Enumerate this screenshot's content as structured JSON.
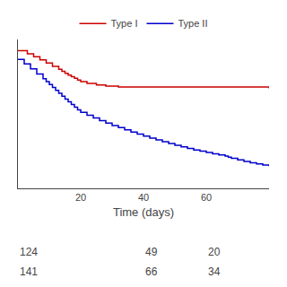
{
  "chart_data": {
    "type": "step",
    "xlabel": "Time (days)",
    "series": [
      {
        "name": "Type I",
        "color": "#cc0000",
        "x": [
          0,
          3,
          5,
          7,
          9,
          11,
          13,
          14,
          15,
          16,
          17,
          18,
          19,
          20,
          22,
          25,
          28,
          32,
          80
        ],
        "values": [
          0.97,
          0.955,
          0.942,
          0.928,
          0.914,
          0.899,
          0.886,
          0.877,
          0.868,
          0.86,
          0.853,
          0.845,
          0.837,
          0.83,
          0.822,
          0.815,
          0.81,
          0.806,
          0.8
        ]
      },
      {
        "name": "Type II",
        "color": "#0000cc",
        "x": [
          0,
          2,
          4,
          6,
          8,
          9,
          10,
          11,
          12,
          13,
          14,
          15,
          16,
          17,
          18,
          19,
          20,
          22,
          24,
          26,
          28,
          30,
          32,
          34,
          36,
          38,
          40,
          42,
          44,
          46,
          48,
          50,
          52,
          54,
          56,
          58,
          60,
          62,
          64,
          66,
          67,
          68,
          70,
          72,
          74,
          76,
          78,
          80
        ],
        "values": [
          0.93,
          0.91,
          0.888,
          0.865,
          0.843,
          0.83,
          0.817,
          0.804,
          0.791,
          0.778,
          0.765,
          0.752,
          0.739,
          0.727,
          0.715,
          0.703,
          0.692,
          0.679,
          0.667,
          0.655,
          0.644,
          0.633,
          0.623,
          0.613,
          0.603,
          0.594,
          0.585,
          0.576,
          0.568,
          0.56,
          0.552,
          0.544,
          0.537,
          0.53,
          0.523,
          0.517,
          0.511,
          0.505,
          0.5,
          0.495,
          0.49,
          0.485,
          0.478,
          0.471,
          0.465,
          0.46,
          0.455,
          0.45
        ]
      }
    ],
    "xlim": [
      0,
      80
    ],
    "xticks": [
      20,
      40,
      60
    ],
    "ylim": [
      0.35,
      1.02
    ],
    "yticks": [],
    "tick_labels": "x",
    "grid": false,
    "legend": "top",
    "annotations": [
      [
        "124",
        "49",
        "20"
      ],
      [
        "141",
        "66",
        "34"
      ]
    ]
  }
}
